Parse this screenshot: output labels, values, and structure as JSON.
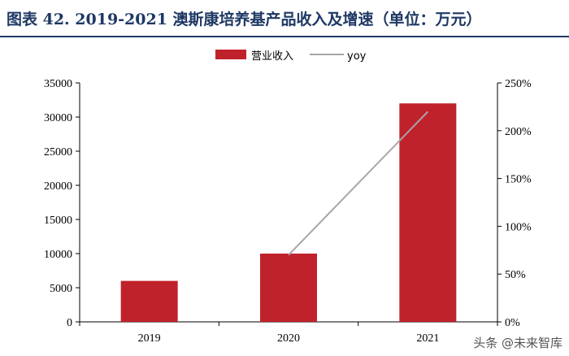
{
  "title": "图表 42. 2019-2021 澳斯康培养基产品收入及增速（单位：万元）",
  "watermark": "头条 @未来智库",
  "colors": {
    "bar": "#c0222c",
    "line": "#a6a6a6",
    "title": "#1f3864",
    "axis": "#000000"
  },
  "chart_data": {
    "type": "bar",
    "categories": [
      "2019",
      "2020",
      "2021"
    ],
    "series": [
      {
        "name": "营业收入",
        "type": "bar",
        "axis": "left",
        "values": [
          6000,
          10000,
          32000
        ]
      },
      {
        "name": "yoy",
        "type": "line",
        "axis": "right",
        "values": [
          null,
          0.7,
          2.2
        ]
      }
    ],
    "y_left": {
      "min": 0,
      "max": 35000,
      "ticks": [
        "0",
        "5000",
        "10000",
        "15000",
        "20000",
        "25000",
        "30000",
        "35000"
      ]
    },
    "y_right": {
      "min": 0,
      "max": 2.5,
      "ticks": [
        "0%",
        "50%",
        "100%",
        "150%",
        "200%",
        "250%"
      ]
    },
    "legend_position": "top-center",
    "grid": false
  }
}
